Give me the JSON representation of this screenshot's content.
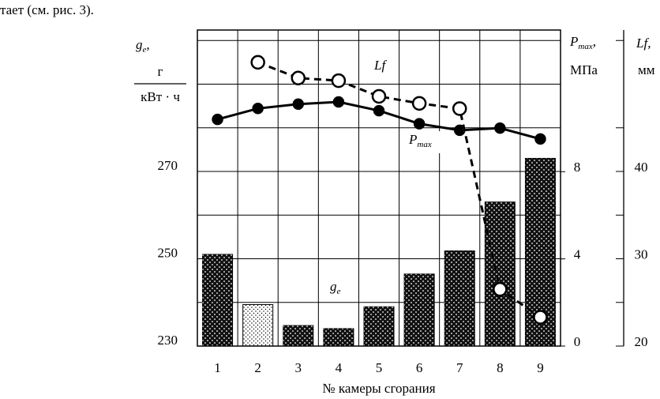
{
  "page_text": "тает (см. рис. 3).",
  "chart_data": {
    "type": "bar",
    "xlabel": "№ камеры сгорания",
    "categories": [
      "1",
      "2",
      "3",
      "4",
      "5",
      "6",
      "7",
      "8",
      "9"
    ],
    "y_label": {
      "symbol": "g",
      "subscript": "e",
      "suffix": ",",
      "unit_top": "г",
      "unit_bottom": "кВт · ч"
    },
    "y2_label": {
      "symbol": "P",
      "subscript": "max",
      "suffix": ",",
      "unit": "МПа"
    },
    "y3_label": {
      "symbol": "Lf",
      "suffix": ",",
      "unit": "мм"
    },
    "ylim": [
      230,
      302.4
    ],
    "yticks": [
      230,
      250,
      270
    ],
    "y2lim": [
      0,
      14.5
    ],
    "y2ticks": [
      0,
      4,
      8
    ],
    "y3lim": [
      20,
      56.2
    ],
    "y3ticks": [
      20,
      30,
      40
    ],
    "grid": true,
    "series": [
      {
        "name": {
          "symbol": "g",
          "subscript": "e"
        },
        "type": "bar",
        "axis": "y",
        "colors": [
          "#111111",
          "#ffffff",
          "#111111",
          "#111111",
          "#111111",
          "#111111",
          "#111111",
          "#111111",
          "#111111"
        ],
        "values": [
          251,
          239.5,
          234.7,
          234,
          239,
          246.5,
          251.8,
          263,
          273
        ]
      },
      {
        "name": {
          "symbol": "P",
          "subscript": "max"
        },
        "type": "line",
        "axis": "y2",
        "color": "#000000",
        "marker": "filled",
        "values": [
          10.4,
          10.9,
          11.1,
          11.2,
          10.8,
          10.2,
          9.9,
          10.0,
          9.5
        ]
      },
      {
        "name": {
          "symbol": "Lf"
        },
        "type": "line",
        "axis": "y3",
        "color": "#000000",
        "marker": "open",
        "dashed": true,
        "values": [
          null,
          52.5,
          50.7,
          50.4,
          48.6,
          47.8,
          47.2,
          26.5,
          23.3
        ]
      }
    ]
  }
}
